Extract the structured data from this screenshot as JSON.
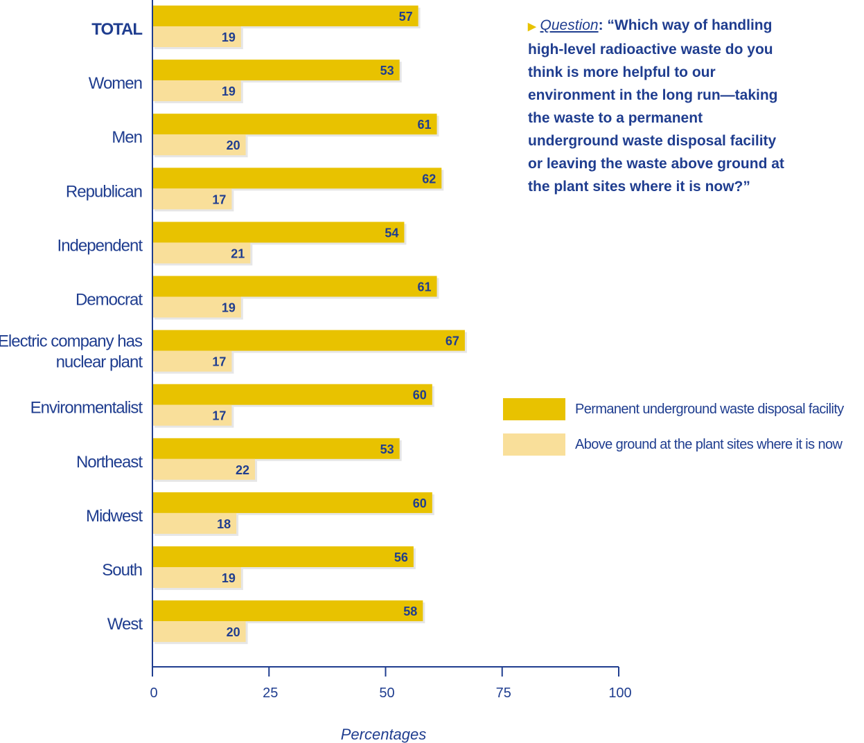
{
  "question": {
    "lead": "Question",
    "text": ": “Which way of handling high-level radioactive waste do you think is more helpful to our environment in the long run—taking the waste to a permanent underground waste disposal facility or leaving the waste above ground at the plant sites where it is now?”"
  },
  "colors": {
    "series1": "#e8c200",
    "series2": "#f9df9a",
    "text": "#1f3d8f",
    "axis": "#1f3d8f"
  },
  "chart_data": {
    "type": "bar",
    "orientation": "horizontal",
    "categories": [
      "TOTAL",
      "Women",
      "Men",
      "Republican",
      "Independent",
      "Democrat",
      "Electric company has nuclear plant",
      "Environmentalist",
      "Northeast",
      "Midwest",
      "South",
      "West"
    ],
    "series": [
      {
        "name": "Permanent underground waste disposal facility",
        "values": [
          57,
          53,
          61,
          62,
          54,
          61,
          67,
          60,
          53,
          60,
          56,
          58
        ]
      },
      {
        "name": "Above ground at the plant sites where it is now",
        "values": [
          19,
          19,
          20,
          17,
          21,
          19,
          17,
          17,
          22,
          18,
          19,
          20
        ]
      }
    ],
    "xlabel": "Percentages",
    "ylabel": "",
    "xlim": [
      0,
      100
    ],
    "xticks": [
      0,
      25,
      50,
      75,
      100
    ],
    "grid": false,
    "legend_position": "right"
  }
}
